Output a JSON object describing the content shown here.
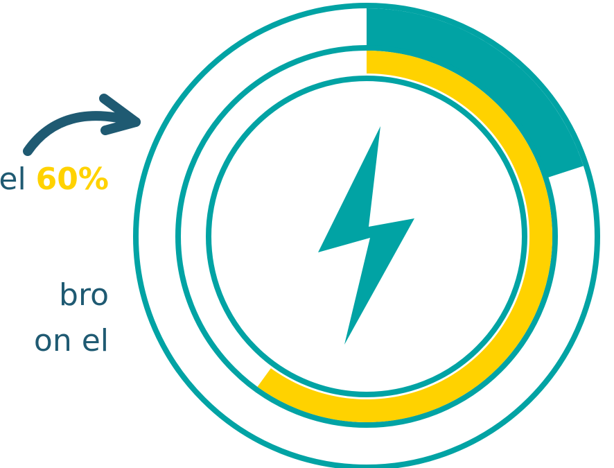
{
  "text": {
    "line1_prefix": "el",
    "line1_highlight": "60%",
    "line2": "bro",
    "line3": "on el"
  },
  "chart_data": {
    "type": "donut",
    "rings": [
      {
        "level": "outer",
        "filled_fraction": 0.2,
        "filled_color": "#01a3a4"
      },
      {
        "level": "middle",
        "filled_fraction": 0.6,
        "filled_color": "#ffd200"
      }
    ],
    "track_color": "#01a3a4",
    "background_color": "#ffffff"
  },
  "icon": {
    "name": "lightning-bolt-icon",
    "color": "#01a3a4"
  },
  "arrow": {
    "name": "curved-arrow-icon",
    "color": "#1f5a72"
  }
}
